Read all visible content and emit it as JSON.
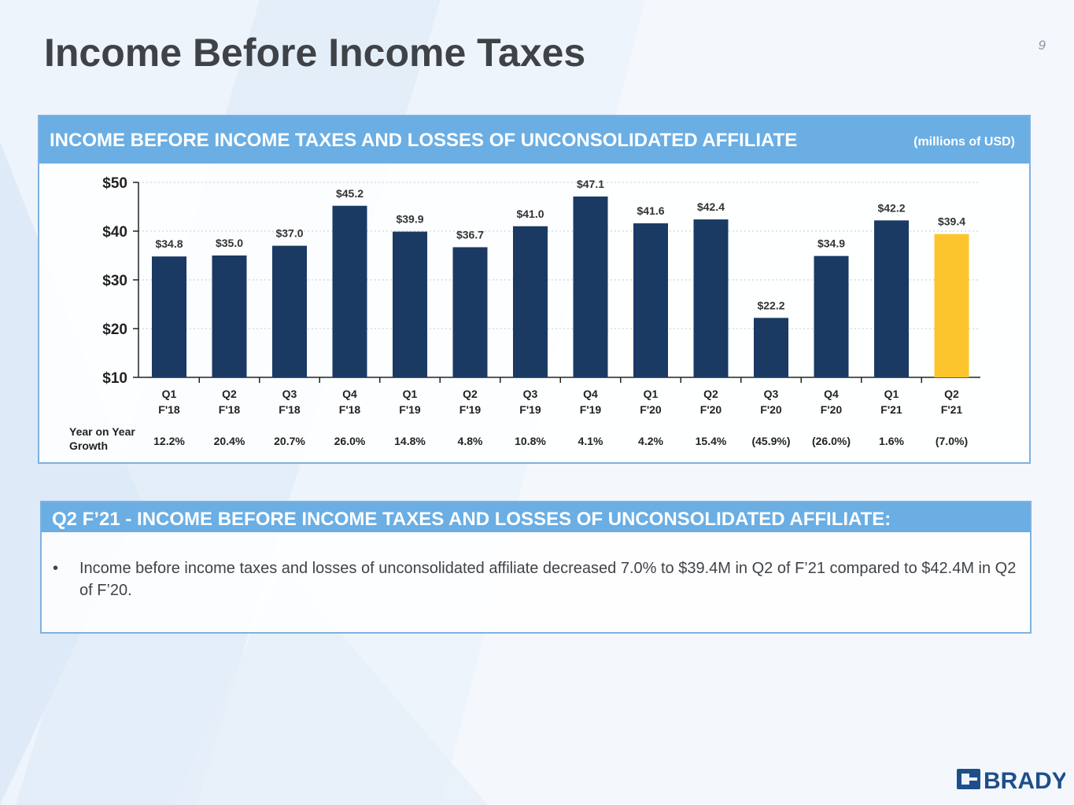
{
  "page": {
    "title": "Income Before Income Taxes",
    "number": "9"
  },
  "panel1": {
    "header": "INCOME BEFORE INCOME TAXES AND LOSSES OF UNCONSOLIDATED AFFILIATE",
    "units": "(millions of USD)"
  },
  "chart_data": {
    "type": "bar",
    "title": "",
    "xlabel": "",
    "ylabel": "",
    "ylim": [
      10,
      50
    ],
    "yticks": [
      "$10",
      "$20",
      "$30",
      "$40",
      "$50"
    ],
    "ytick_values": [
      10,
      20,
      30,
      40,
      50
    ],
    "grid": true,
    "categories": [
      [
        "Q1",
        "F'18"
      ],
      [
        "Q2",
        "F'18"
      ],
      [
        "Q3",
        "F'18"
      ],
      [
        "Q4",
        "F'18"
      ],
      [
        "Q1",
        "F'19"
      ],
      [
        "Q2",
        "F'19"
      ],
      [
        "Q3",
        "F'19"
      ],
      [
        "Q4",
        "F'19"
      ],
      [
        "Q1",
        "F'20"
      ],
      [
        "Q2",
        "F'20"
      ],
      [
        "Q3",
        "F'20"
      ],
      [
        "Q4",
        "F'20"
      ],
      [
        "Q1",
        "F'21"
      ],
      [
        "Q2",
        "F'21"
      ]
    ],
    "values": [
      34.8,
      35.0,
      37.0,
      45.2,
      39.9,
      36.7,
      41.0,
      47.1,
      41.6,
      42.4,
      22.2,
      34.9,
      42.2,
      39.4
    ],
    "value_labels": [
      "$34.8",
      "$35.0",
      "$37.0",
      "$45.2",
      "$39.9",
      "$36.7",
      "$41.0",
      "$47.1",
      "$41.6",
      "$42.4",
      "$22.2",
      "$34.9",
      "$42.2",
      "$39.4"
    ],
    "highlight_index": 13,
    "colors": {
      "bar": "#1a3a64",
      "highlight": "#fdc52d"
    },
    "growth_label": [
      "Year on Year",
      "Growth"
    ],
    "growth": [
      "12.2%",
      "20.4%",
      "20.7%",
      "26.0%",
      "14.8%",
      "4.8%",
      "10.8%",
      "4.1%",
      "4.2%",
      "15.4%",
      "(45.9%)",
      "(26.0%)",
      "1.6%",
      "(7.0%)"
    ]
  },
  "panel2": {
    "header": "Q2 F’21 - INCOME BEFORE INCOME TAXES AND LOSSES OF UNCONSOLIDATED AFFILIATE:",
    "bullet_symbol": "•",
    "bullet": "Income before income taxes and losses of unconsolidated affiliate decreased 7.0% to $39.4M in Q2 of F’21 compared to $42.4M in Q2 of F’20."
  },
  "logo": {
    "text": "BRADY",
    "color": "#1f4f8b"
  }
}
